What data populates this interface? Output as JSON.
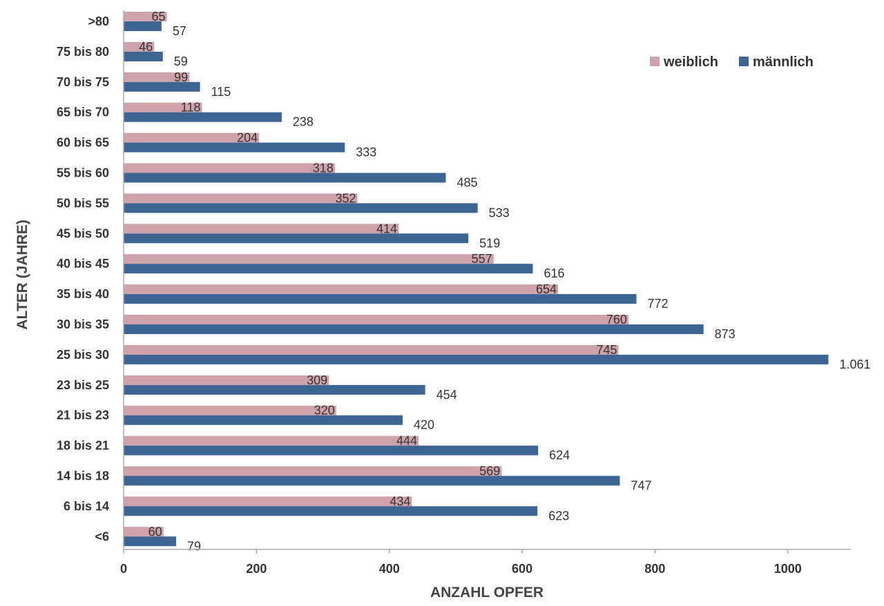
{
  "chart_data": {
    "type": "bar",
    "orientation": "horizontal",
    "xlabel": "ANZAHL OPFER",
    "ylabel": "ALTER (JAHRE)",
    "xlim": [
      0,
      1100
    ],
    "xticks": [
      {
        "value": 0,
        "label": "0"
      },
      {
        "value": 200,
        "label": "200"
      },
      {
        "value": 400,
        "label": "400"
      },
      {
        "value": 600,
        "label": "600"
      },
      {
        "value": 800,
        "label": "800"
      },
      {
        "value": 1000,
        "label": "1000"
      }
    ],
    "grid": false,
    "legend_position": "top-right",
    "categories": [
      ">80",
      "75 bis 80",
      "70 bis 75",
      "65 bis 70",
      "60 bis 65",
      "55 bis 60",
      "50 bis 55",
      "45 bis 50",
      "40 bis 45",
      "35 bis 40",
      "30 bis 35",
      "25 bis 30",
      "23 bis 25",
      "21 bis 23",
      "18 bis 21",
      "14 bis 18",
      "6 bis 14",
      "<6"
    ],
    "series": [
      {
        "name": "weiblich",
        "color": "#cea3ab",
        "values": [
          65,
          46,
          99,
          118,
          204,
          318,
          352,
          414,
          557,
          654,
          760,
          745,
          309,
          320,
          444,
          569,
          434,
          60
        ],
        "labels": [
          "65",
          "46",
          "99",
          "118",
          "204",
          "318",
          "352",
          "414",
          "557",
          "654",
          "760",
          "745",
          "309",
          "320",
          "444",
          "569",
          "434",
          "60"
        ]
      },
      {
        "name": "männlich",
        "color": "#3e6493",
        "values": [
          57,
          59,
          115,
          238,
          333,
          485,
          533,
          519,
          616,
          772,
          873,
          1061,
          454,
          420,
          624,
          747,
          623,
          79
        ],
        "labels": [
          "57",
          "59",
          "115",
          "238",
          "333",
          "485",
          "533",
          "519",
          "616",
          "772",
          "873",
          "1.061",
          "454",
          "420",
          "624",
          "747",
          "623",
          "79"
        ]
      }
    ]
  }
}
